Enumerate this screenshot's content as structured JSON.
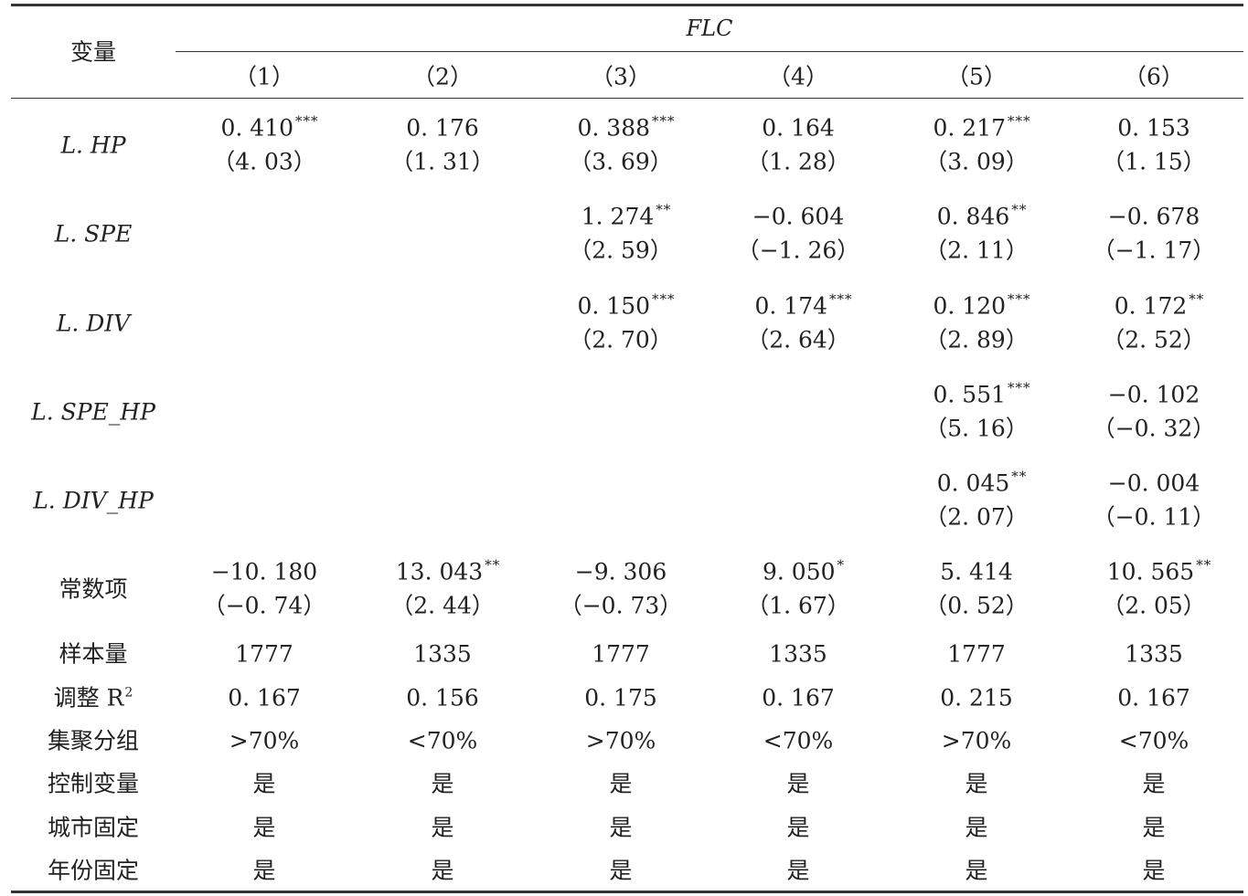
{
  "header": {
    "variable_label": "变量",
    "group_label": "FLC",
    "columns": [
      "（1）",
      "（2）",
      "（3）",
      "（4）",
      "（5）",
      "（6）"
    ]
  },
  "coef_rows": [
    {
      "label": "L. HP",
      "cells": [
        {
          "coef": "0. 410",
          "stars": "***",
          "t": "（4. 03）"
        },
        {
          "coef": "0. 176",
          "stars": "",
          "t": "（1. 31）"
        },
        {
          "coef": "0. 388",
          "stars": "***",
          "t": "（3. 69）"
        },
        {
          "coef": "0. 164",
          "stars": "",
          "t": "（1. 28）"
        },
        {
          "coef": "0. 217",
          "stars": "***",
          "t": "（3. 09）"
        },
        {
          "coef": "0. 153",
          "stars": "",
          "t": "（1. 15）"
        }
      ]
    },
    {
      "label": "L. SPE",
      "cells": [
        null,
        null,
        {
          "coef": "1. 274",
          "stars": "**",
          "t": "（2. 59）"
        },
        {
          "coef": "−0. 604",
          "stars": "",
          "t": "（−1. 26）"
        },
        {
          "coef": "0. 846",
          "stars": "**",
          "t": "（2. 11）"
        },
        {
          "coef": "−0. 678",
          "stars": "",
          "t": "（−1. 17）"
        }
      ]
    },
    {
      "label": "L. DIV",
      "cells": [
        null,
        null,
        {
          "coef": "0. 150",
          "stars": "***",
          "t": "（2. 70）"
        },
        {
          "coef": "0. 174",
          "stars": "***",
          "t": "（2. 64）"
        },
        {
          "coef": "0. 120",
          "stars": "***",
          "t": "（2. 89）"
        },
        {
          "coef": "0. 172",
          "stars": "**",
          "t": "（2. 52）"
        }
      ]
    },
    {
      "label": "L. SPE_HP",
      "cells": [
        null,
        null,
        null,
        null,
        {
          "coef": "0. 551",
          "stars": "***",
          "t": "（5. 16）"
        },
        {
          "coef": "−0. 102",
          "stars": "",
          "t": "（−0. 32）"
        }
      ]
    },
    {
      "label": "L. DIV_HP",
      "cells": [
        null,
        null,
        null,
        null,
        {
          "coef": "0. 045",
          "stars": "**",
          "t": "（2. 07）"
        },
        {
          "coef": "−0. 004",
          "stars": "",
          "t": "（−0. 11）"
        }
      ]
    },
    {
      "label": "常数项",
      "cells": [
        {
          "coef": "−10. 180",
          "stars": "",
          "t": "（−0. 74）"
        },
        {
          "coef": "13. 043",
          "stars": "**",
          "t": "（2. 44）"
        },
        {
          "coef": "−9. 306",
          "stars": "",
          "t": "（−0. 73）"
        },
        {
          "coef": "9. 050",
          "stars": "*",
          "t": "（1. 67）"
        },
        {
          "coef": "5. 414",
          "stars": "",
          "t": "（0. 52）"
        },
        {
          "coef": "10. 565",
          "stars": "**",
          "t": "（2. 05）"
        }
      ]
    }
  ],
  "stat_rows": [
    {
      "label": "样本量",
      "sup": "",
      "values": [
        "1777",
        "1335",
        "1777",
        "1335",
        "1777",
        "1335"
      ]
    },
    {
      "label": "调整 R",
      "sup": "2",
      "values": [
        "0. 167",
        "0. 156",
        "0. 175",
        "0. 167",
        "0. 215",
        "0. 167"
      ]
    },
    {
      "label": "集聚分组",
      "sup": "",
      "values": [
        ">70%",
        "<70%",
        ">70%",
        "<70%",
        ">70%",
        "<70%"
      ]
    },
    {
      "label": "控制变量",
      "sup": "",
      "values": [
        "是",
        "是",
        "是",
        "是",
        "是",
        "是"
      ]
    },
    {
      "label": "城市固定",
      "sup": "",
      "values": [
        "是",
        "是",
        "是",
        "是",
        "是",
        "是"
      ]
    },
    {
      "label": "年份固定",
      "sup": "",
      "values": [
        "是",
        "是",
        "是",
        "是",
        "是",
        "是"
      ]
    }
  ]
}
